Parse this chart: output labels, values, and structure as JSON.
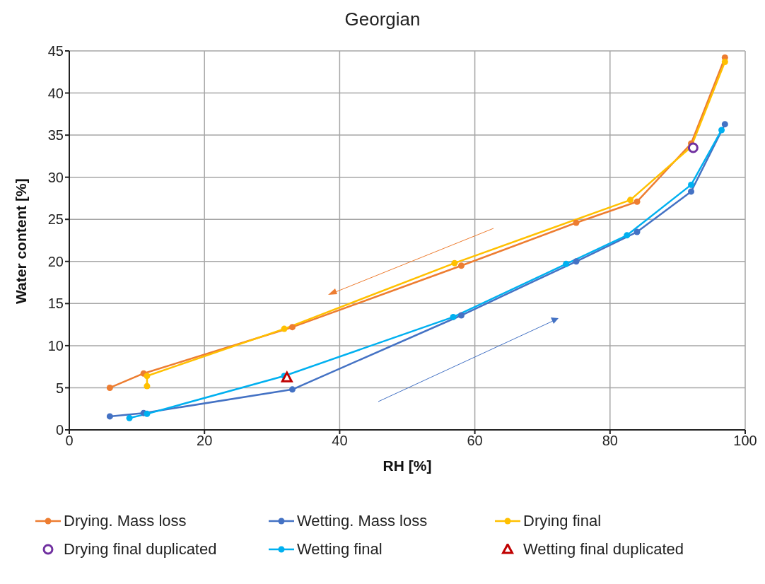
{
  "chart_data": {
    "type": "line",
    "title": "Georgian",
    "xlabel": "RH [%]",
    "ylabel": "Water content [%]",
    "xlim": [
      0,
      100
    ],
    "xticks": [
      0,
      20,
      40,
      60,
      80,
      100
    ],
    "ylim": [
      0,
      45
    ],
    "yticks": [
      0,
      5,
      10,
      15,
      20,
      25,
      30,
      35,
      40,
      45
    ],
    "grid": true,
    "legend": "bottom",
    "marker": "circle",
    "line_style": "solid",
    "series": [
      {
        "name": "Drying. Mass loss",
        "color": "#ed7d31",
        "x": [
          6,
          11,
          33,
          58,
          75,
          84,
          92,
          97
        ],
        "values": [
          5,
          6.7,
          12.2,
          19.5,
          24.6,
          27.1,
          34,
          44.2
        ]
      },
      {
        "name": "Wetting. Mass loss",
        "color": "#4472c4",
        "x": [
          6,
          11,
          33,
          58,
          75,
          84,
          92,
          97
        ],
        "values": [
          1.6,
          2,
          4.8,
          13.6,
          20,
          23.5,
          28.3,
          36.3
        ]
      },
      {
        "name": "Drying final",
        "color": "#ffc000",
        "x": [
          97,
          92,
          83,
          57,
          31.8,
          11.5,
          11.5
        ],
        "values": [
          43.7,
          33.6,
          27.3,
          19.8,
          12,
          6.4,
          5.2
        ]
      },
      {
        "name": "Drying final duplicated",
        "type": "scatter",
        "marker": "circle",
        "color": "#7030a0",
        "x": [
          92.3
        ],
        "values": [
          33.5
        ]
      },
      {
        "name": "Wetting final",
        "color": "#00b0f0",
        "x": [
          8.9,
          11.5,
          31.8,
          56.8,
          73.5,
          82.5,
          92,
          96.5
        ],
        "values": [
          1.4,
          1.9,
          6.4,
          13.4,
          19.7,
          23.1,
          29.1,
          35.6
        ]
      },
      {
        "name": "Wetting final duplicated",
        "type": "scatter",
        "marker": "triangle",
        "color": "#c00000",
        "x": [
          32.2
        ],
        "values": [
          6.2
        ]
      }
    ]
  }
}
